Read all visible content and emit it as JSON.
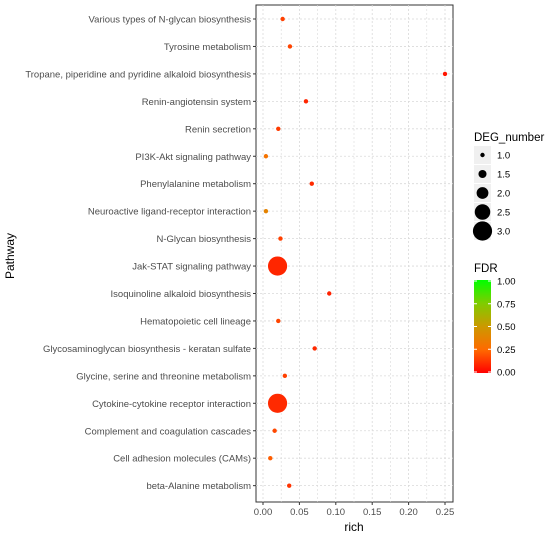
{
  "chart_data": {
    "type": "scatter",
    "xlabel": "rich",
    "ylabel": "Pathway",
    "xlim": [
      -0.015,
      0.255
    ],
    "x_ticks": [
      0.0,
      0.05,
      0.1,
      0.15,
      0.2,
      0.25
    ],
    "x_tick_labels": [
      "0.00",
      "0.05",
      "0.10",
      "0.15",
      "0.20",
      "0.25"
    ],
    "grid": true,
    "background_color": "#ffffff",
    "grid_color": "#d9d9d9",
    "pathways": [
      {
        "name": "Various types of N-glycan biosynthesis",
        "rich": 0.027,
        "deg_number": 1,
        "fdr": 0.15
      },
      {
        "name": "Tyrosine metabolism",
        "rich": 0.037,
        "deg_number": 1,
        "fdr": 0.16
      },
      {
        "name": "Tropane, piperidine and pyridine alkaloid biosynthesis",
        "rich": 0.25,
        "deg_number": 1,
        "fdr": 0.05
      },
      {
        "name": "Renin-angiotensin system",
        "rich": 0.059,
        "deg_number": 1,
        "fdr": 0.09
      },
      {
        "name": "Renin secretion",
        "rich": 0.021,
        "deg_number": 1,
        "fdr": 0.14
      },
      {
        "name": "PI3K-Akt signaling pathway",
        "rich": 0.004,
        "deg_number": 1,
        "fdr": 0.3
      },
      {
        "name": "Phenylalanine metabolism",
        "rich": 0.067,
        "deg_number": 1,
        "fdr": 0.1
      },
      {
        "name": "Neuroactive ligand-receptor interaction",
        "rich": 0.004,
        "deg_number": 1,
        "fdr": 0.38
      },
      {
        "name": "N-Glycan biosynthesis",
        "rich": 0.024,
        "deg_number": 1,
        "fdr": 0.15
      },
      {
        "name": "Jak-STAT signaling pathway",
        "rich": 0.02,
        "deg_number": 3,
        "fdr": 0.09
      },
      {
        "name": "Isoquinoline alkaloid biosynthesis",
        "rich": 0.091,
        "deg_number": 1,
        "fdr": 0.08
      },
      {
        "name": "Hematopoietic cell lineage",
        "rich": 0.021,
        "deg_number": 1,
        "fdr": 0.16
      },
      {
        "name": "Glycosaminoglycan biosynthesis - keratan sulfate",
        "rich": 0.071,
        "deg_number": 1,
        "fdr": 0.1
      },
      {
        "name": "Glycine, serine and threonine metabolism",
        "rich": 0.03,
        "deg_number": 1,
        "fdr": 0.15
      },
      {
        "name": "Cytokine-cytokine receptor interaction",
        "rich": 0.02,
        "deg_number": 3,
        "fdr": 0.1
      },
      {
        "name": "Complement and coagulation cascades",
        "rich": 0.016,
        "deg_number": 1,
        "fdr": 0.17
      },
      {
        "name": "Cell adhesion molecules (CAMs)",
        "rich": 0.01,
        "deg_number": 1,
        "fdr": 0.22
      },
      {
        "name": "beta-Alanine metabolism",
        "rich": 0.036,
        "deg_number": 1,
        "fdr": 0.12
      }
    ],
    "size_legend": {
      "title": "DEG_number",
      "labels": [
        "1.0",
        "1.5",
        "2.0",
        "2.5",
        "3.0"
      ],
      "values": [
        1.0,
        1.5,
        2.0,
        2.5,
        3.0
      ],
      "key_background": "#f0f0f0"
    },
    "color_legend": {
      "title": "FDR",
      "labels": [
        "1.00",
        "0.75",
        "0.50",
        "0.25",
        "0.00"
      ],
      "values": [
        1.0,
        0.75,
        0.5,
        0.25,
        0.0
      ],
      "high_color": "#00ff00",
      "low_color": "#ff0000"
    }
  }
}
